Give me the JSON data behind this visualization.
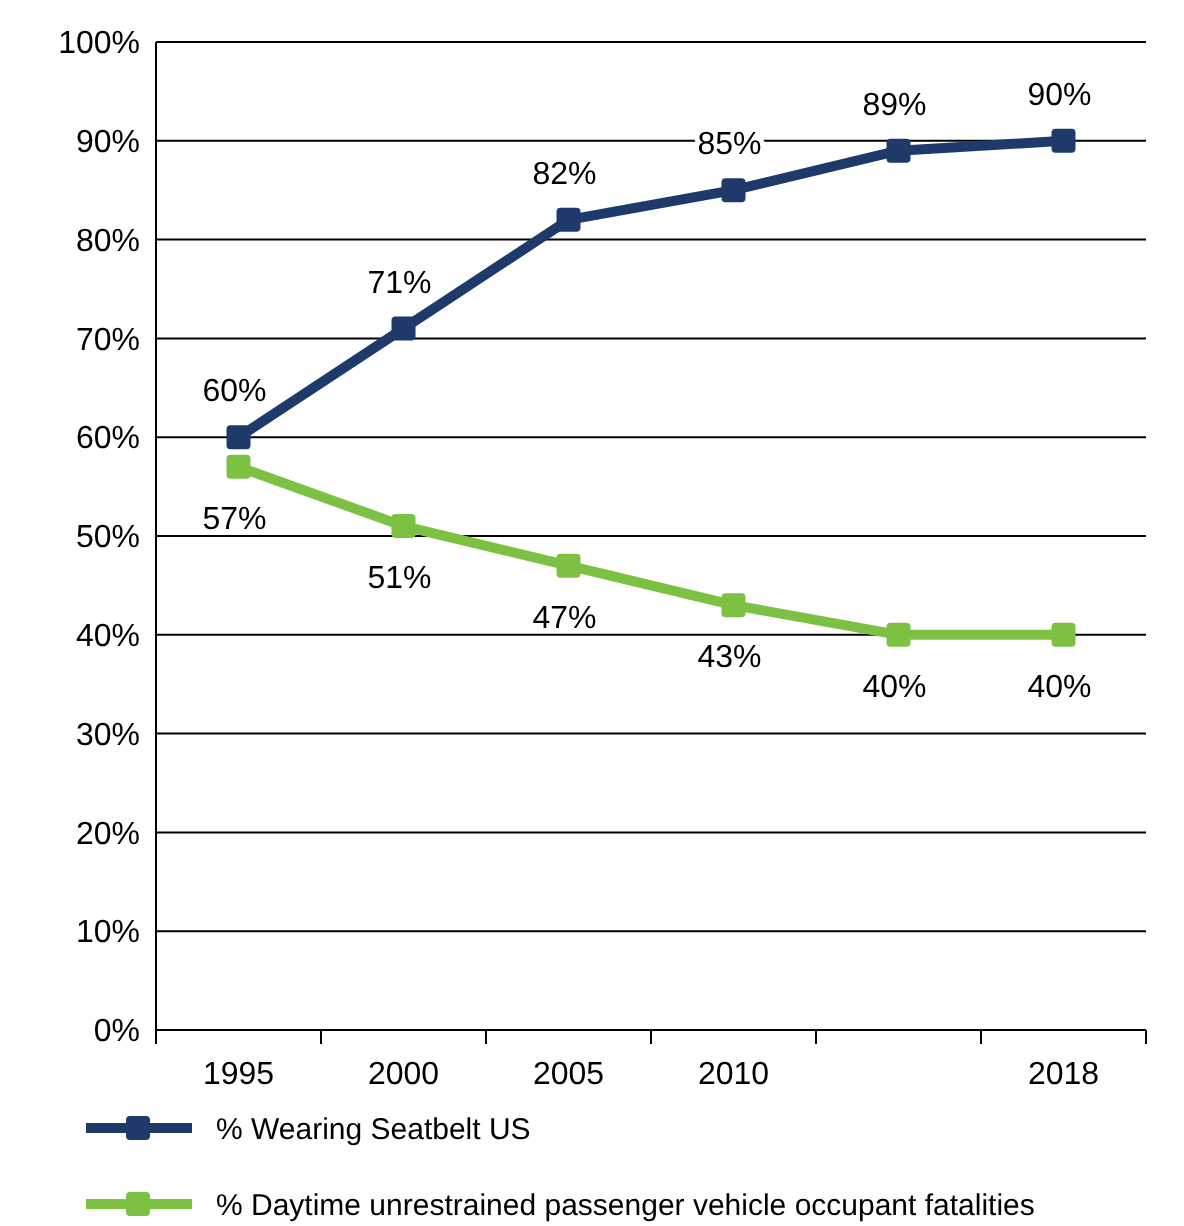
{
  "chart_data": {
    "type": "line",
    "categories": [
      "1995",
      "2000",
      "2005",
      "2010",
      null,
      "2018"
    ],
    "series": [
      {
        "name": "% Wearing Seatbelt US",
        "color": "#1d3a6a",
        "values": [
          60,
          71,
          82,
          85,
          89,
          90
        ]
      },
      {
        "name": "% Daytime unrestrained passenger vehicle occupant fatalities",
        "color": "#7cc142",
        "values": [
          57,
          51,
          47,
          43,
          40,
          40
        ]
      }
    ],
    "ylim": [
      0,
      100
    ],
    "yticks": [
      {
        "value": 0,
        "label": "0%"
      },
      {
        "value": 10,
        "label": "10%"
      },
      {
        "value": 20,
        "label": "20%"
      },
      {
        "value": 30,
        "label": "30%"
      },
      {
        "value": 40,
        "label": "40%"
      },
      {
        "value": 50,
        "label": "50%"
      },
      {
        "value": 60,
        "label": "60%"
      },
      {
        "value": 70,
        "label": "70%"
      },
      {
        "value": 80,
        "label": "80%"
      },
      {
        "value": 90,
        "label": "90%"
      },
      {
        "value": 100,
        "label": "100%"
      }
    ],
    "value_labels": [
      [
        "60%",
        "71%",
        "82%",
        "85%",
        "89%",
        "90%"
      ],
      [
        "57%",
        "51%",
        "47%",
        "43%",
        "40%",
        "40%"
      ]
    ],
    "grid": "y",
    "legend": "bottom",
    "marker": "square",
    "line_style": "solid"
  }
}
